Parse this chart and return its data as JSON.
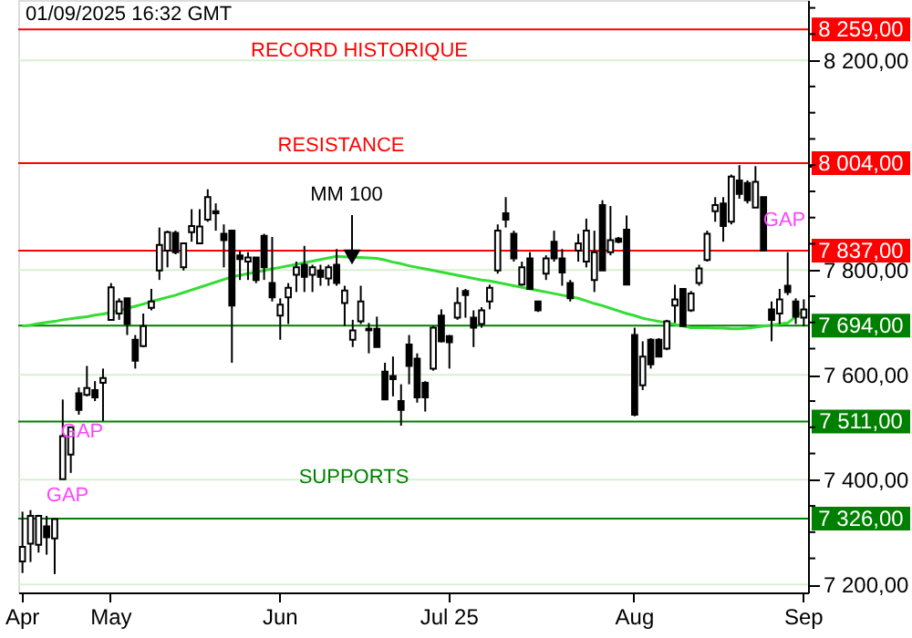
{
  "chart_data": {
    "type": "candlestick",
    "categories": [
      "Apr",
      null,
      null,
      null,
      null,
      null,
      null,
      null,
      null,
      null,
      null,
      "May",
      null,
      null,
      null,
      null,
      null,
      null,
      null,
      null,
      null,
      null,
      null,
      null,
      null,
      null,
      null,
      null,
      null,
      null,
      null,
      null,
      "Jun",
      null,
      null,
      null,
      null,
      null,
      null,
      null,
      null,
      null,
      null,
      null,
      null,
      null,
      null,
      null,
      null,
      null,
      null,
      null,
      null,
      "Jul 25",
      null,
      null,
      null,
      null,
      null,
      null,
      null,
      null,
      null,
      null,
      null,
      null,
      null,
      null,
      null,
      null,
      null,
      null,
      null,
      null,
      null,
      null,
      "Aug",
      null,
      null,
      null,
      null,
      null,
      null,
      null,
      null,
      null,
      null,
      null,
      null,
      null,
      null,
      null,
      null,
      null,
      null,
      null,
      null,
      "Sep"
    ],
    "ohlc": [
      [
        7244,
        7339,
        7222,
        7272
      ],
      [
        7278,
        7342,
        7243,
        7331
      ],
      [
        7276,
        7333,
        7261,
        7331
      ],
      [
        7311,
        7331,
        7257,
        7290
      ],
      [
        7288,
        7325,
        7220,
        7325
      ],
      [
        7401,
        7553,
        7401,
        7483
      ],
      [
        7448,
        7500,
        7413,
        7500
      ],
      [
        7565,
        7576,
        7524,
        7533
      ],
      [
        7562,
        7617,
        7559,
        7575
      ],
      [
        7571,
        7588,
        7550,
        7557
      ],
      [
        7585,
        7612,
        7512,
        7594
      ],
      [
        7705,
        7775,
        7705,
        7767
      ],
      [
        7717,
        7746,
        7705,
        7740
      ],
      [
        7746,
        7746,
        7676,
        7697
      ],
      [
        7667,
        7676,
        7612,
        7627
      ],
      [
        7655,
        7717,
        7653,
        7693
      ],
      [
        7728,
        7764,
        7723,
        7740
      ],
      [
        7799,
        7881,
        7781,
        7848
      ],
      [
        7837,
        7875,
        7805,
        7872
      ],
      [
        7871,
        7875,
        7830,
        7834
      ],
      [
        7805,
        7851,
        7799,
        7851
      ],
      [
        7872,
        7916,
        7854,
        7884
      ],
      [
        7851,
        7916,
        7851,
        7883
      ],
      [
        7896,
        7954,
        7892,
        7939
      ],
      [
        7912,
        7927,
        7875,
        7908
      ],
      [
        7869,
        7887,
        7805,
        7857
      ],
      [
        7875,
        7875,
        7623,
        7732
      ],
      [
        7828,
        7837,
        7781,
        7821
      ],
      [
        7816,
        7834,
        7781,
        7824
      ],
      [
        7824,
        7824,
        7775,
        7781
      ],
      [
        7865,
        7869,
        7781,
        7805
      ],
      [
        7775,
        7863,
        7740,
        7748
      ],
      [
        7713,
        7746,
        7667,
        7734
      ],
      [
        7748,
        7775,
        7697,
        7766
      ],
      [
        7791,
        7816,
        7758,
        7805
      ],
      [
        7810,
        7846,
        7758,
        7787
      ],
      [
        7791,
        7810,
        7758,
        7805
      ],
      [
        7799,
        7810,
        7770,
        7787
      ],
      [
        7784,
        7810,
        7770,
        7805
      ],
      [
        7810,
        7840,
        7770,
        7775
      ],
      [
        7737,
        7770,
        7693,
        7761
      ],
      [
        7667,
        7705,
        7653,
        7685
      ],
      [
        7702,
        7770,
        7697,
        7740
      ],
      [
        7688,
        7699,
        7641,
        7685
      ],
      [
        7688,
        7711,
        7653,
        7653
      ],
      [
        7606,
        7623,
        7553,
        7553
      ],
      [
        7598,
        7635,
        7559,
        7592
      ],
      [
        7550,
        7582,
        7503,
        7533
      ],
      [
        7658,
        7676,
        7582,
        7617
      ],
      [
        7631,
        7641,
        7547,
        7557
      ],
      [
        7585,
        7588,
        7530,
        7557
      ],
      [
        7612,
        7693,
        7608,
        7690
      ],
      [
        7713,
        7725,
        7662,
        7664
      ],
      [
        7674,
        7676,
        7612,
        7662
      ],
      [
        7709,
        7767,
        7705,
        7737
      ],
      [
        7760,
        7764,
        7709,
        7752
      ],
      [
        7709,
        7723,
        7653,
        7690
      ],
      [
        7697,
        7729,
        7690,
        7723
      ],
      [
        7740,
        7772,
        7725,
        7766
      ],
      [
        7799,
        7887,
        7793,
        7875
      ],
      [
        7908,
        7939,
        7881,
        7896
      ],
      [
        7869,
        7875,
        7816,
        7822
      ],
      [
        7772,
        7816,
        7770,
        7805
      ],
      [
        7822,
        7834,
        7764,
        7764
      ],
      [
        7740,
        7740,
        7720,
        7723
      ],
      [
        7793,
        7828,
        7781,
        7822
      ],
      [
        7854,
        7875,
        7816,
        7822
      ],
      [
        7822,
        7840,
        7770,
        7795
      ],
      [
        7775,
        7781,
        7740,
        7746
      ],
      [
        7837,
        7869,
        7816,
        7851
      ],
      [
        7816,
        7898,
        7805,
        7875
      ],
      [
        7781,
        7875,
        7758,
        7834
      ],
      [
        7924,
        7933,
        7799,
        7799
      ],
      [
        7834,
        7922,
        7828,
        7857
      ],
      [
        7860,
        7863,
        7851,
        7854
      ],
      [
        7877,
        7904,
        7772,
        7772
      ],
      [
        7676,
        7690,
        7521,
        7524
      ],
      [
        7580,
        7664,
        7571,
        7635
      ],
      [
        7667,
        7670,
        7612,
        7620
      ],
      [
        7667,
        7670,
        7635,
        7635
      ],
      [
        7650,
        7705,
        7647,
        7702
      ],
      [
        7732,
        7772,
        7699,
        7744
      ],
      [
        7764,
        7764,
        7693,
        7693
      ],
      [
        7723,
        7760,
        7720,
        7755
      ],
      [
        7775,
        7810,
        7770,
        7803
      ],
      [
        7819,
        7875,
        7816,
        7869
      ],
      [
        7912,
        7939,
        7892,
        7924
      ],
      [
        7927,
        7939,
        7854,
        7884
      ],
      [
        7892,
        7982,
        7887,
        7978
      ],
      [
        7971,
        8000,
        7936,
        7945
      ],
      [
        7966,
        7971,
        7927,
        7933
      ],
      [
        7919,
        7998,
        7919,
        7968
      ],
      [
        7939,
        7939,
        7837,
        7837
      ],
      [
        7725,
        7740,
        7664,
        7705
      ],
      [
        7717,
        7764,
        7697,
        7744
      ],
      [
        7770,
        7834,
        7752,
        7758
      ],
      [
        7740,
        7746,
        7697,
        7711
      ],
      [
        7709,
        7744,
        7693,
        7725
      ]
    ],
    "series": [
      {
        "type": "line",
        "color": "#33dd33",
        "values": [
          7693,
          7695,
          7698,
          7700,
          7702,
          7705,
          7707,
          7709,
          7711,
          7714,
          7716,
          7719,
          7723,
          7727,
          7731,
          7735,
          7740,
          7744,
          7748,
          7752,
          7757,
          7762,
          7767,
          7772,
          7777,
          7782,
          7787,
          7790,
          7793,
          7796,
          7799,
          7802,
          7805,
          7808,
          7811,
          7814,
          7817,
          7820,
          7823,
          7826,
          7825,
          7824,
          7824,
          7823,
          7822,
          7819,
          7815,
          7812,
          7808,
          7805,
          7802,
          7799,
          7796,
          7793,
          7790,
          7787,
          7784,
          7781,
          7779,
          7776,
          7773,
          7770,
          7767,
          7764,
          7761,
          7758,
          7755,
          7752,
          7749,
          7746,
          7741,
          7736,
          7732,
          7727,
          7722,
          7717,
          7713,
          7708,
          7705,
          7702,
          7699,
          7696,
          7693,
          7690,
          7690,
          7690,
          7689,
          7689,
          7688,
          7688,
          7689,
          7691,
          7693,
          7695,
          7697,
          7699,
          7711,
          7723
        ]
      }
    ],
    "ylim": [
      7185,
      8315
    ],
    "yticks": [
      {
        "value": 7200,
        "label": "7 200,00"
      },
      {
        "value": 7250,
        "label": null
      },
      {
        "value": 7300,
        "label": null
      },
      {
        "value": 7350,
        "label": null
      },
      {
        "value": 7400,
        "label": "7 400,00"
      },
      {
        "value": 7450,
        "label": null
      },
      {
        "value": 7500,
        "label": null
      },
      {
        "value": 7550,
        "label": null
      },
      {
        "value": 7600,
        "label": "7 600,00"
      },
      {
        "value": 7650,
        "label": null
      },
      {
        "value": 7700,
        "label": null
      },
      {
        "value": 7750,
        "label": null
      },
      {
        "value": 7800,
        "label": "7 800,00"
      },
      {
        "value": 7850,
        "label": null
      },
      {
        "value": 7900,
        "label": null
      },
      {
        "value": 7950,
        "label": null
      },
      {
        "value": 8000,
        "label": null
      },
      {
        "value": 8050,
        "label": null
      },
      {
        "value": 8100,
        "label": null
      },
      {
        "value": 8150,
        "label": null
      },
      {
        "value": 8200,
        "label": "8 200,00"
      },
      {
        "value": 8250,
        "label": null
      },
      {
        "value": 8300,
        "label": null
      }
    ],
    "grid": "y",
    "ref_lines": [
      {
        "axis": "y",
        "value": 8259,
        "label": "8 259,00",
        "color": "#ff0000"
      },
      {
        "axis": "y",
        "value": 8004,
        "label": "8 004,00",
        "color": "#ff0000"
      },
      {
        "axis": "y",
        "value": 7837,
        "label": "7 837,00",
        "color": "#ff0000"
      },
      {
        "axis": "y",
        "value": 7694,
        "label": "7 694,00",
        "color": "#008000"
      },
      {
        "axis": "y",
        "value": 7511,
        "label": "7 511,00",
        "color": "#008000"
      },
      {
        "axis": "y",
        "value": 7326,
        "label": "7 326,00",
        "color": "#008000"
      }
    ],
    "annotations": [
      "01/09/2025 16:32 GMT",
      "RECORD HISTORIQUE",
      "RESISTANCE",
      "MM 100",
      "GAP",
      "GAP",
      "GAP",
      "SUPPORTS"
    ]
  }
}
